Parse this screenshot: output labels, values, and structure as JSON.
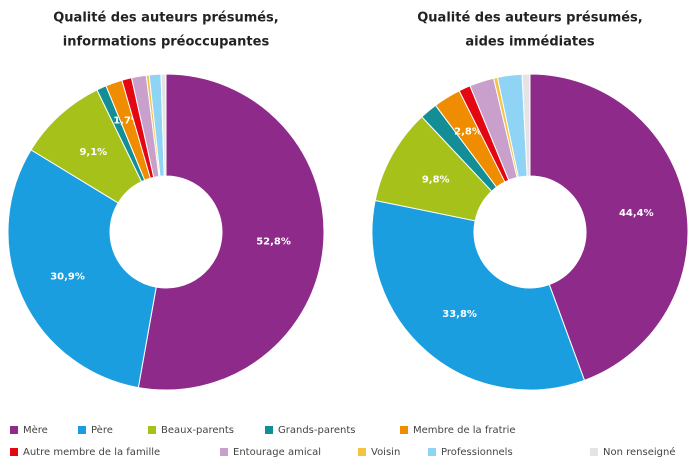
{
  "chart_data": [
    {
      "type": "pie",
      "title": "Qualité des auteurs présumés,",
      "subtitle": "informations préoccupantes",
      "values": [
        52.8,
        30.9,
        9.1,
        1.0,
        1.7,
        1.0,
        1.5,
        0.3,
        1.2,
        0.5
      ],
      "value_labels": [
        "52,8%",
        "30,9%",
        "9,1%",
        null,
        "1,7%",
        null,
        null,
        null,
        null,
        null
      ]
    },
    {
      "type": "pie",
      "title": "Qualité des auteurs présumés,",
      "subtitle": "aides immédiates",
      "values": [
        44.4,
        33.8,
        9.8,
        1.8,
        2.8,
        1.2,
        2.5,
        0.4,
        2.5,
        0.8
      ],
      "value_labels": [
        "44,4%",
        "33,8%",
        "9,8%",
        null,
        "2,8%",
        null,
        null,
        null,
        null,
        null
      ]
    }
  ],
  "legend": {
    "labels": [
      "Mère",
      "Père",
      "Beaux-parents",
      "Grands-parents",
      "Membre de la fratrie",
      "Autre membre de la famille",
      "Entourage amical",
      "Voisin",
      "Professionnels",
      "Non renseigné"
    ],
    "colors": [
      "#8e2a8a",
      "#1a9ee0",
      "#a6c21a",
      "#138e96",
      "#f08c00",
      "#e30613",
      "#c9a0cc",
      "#f5c242",
      "#8fd3f5",
      "#e4e4e4"
    ]
  }
}
